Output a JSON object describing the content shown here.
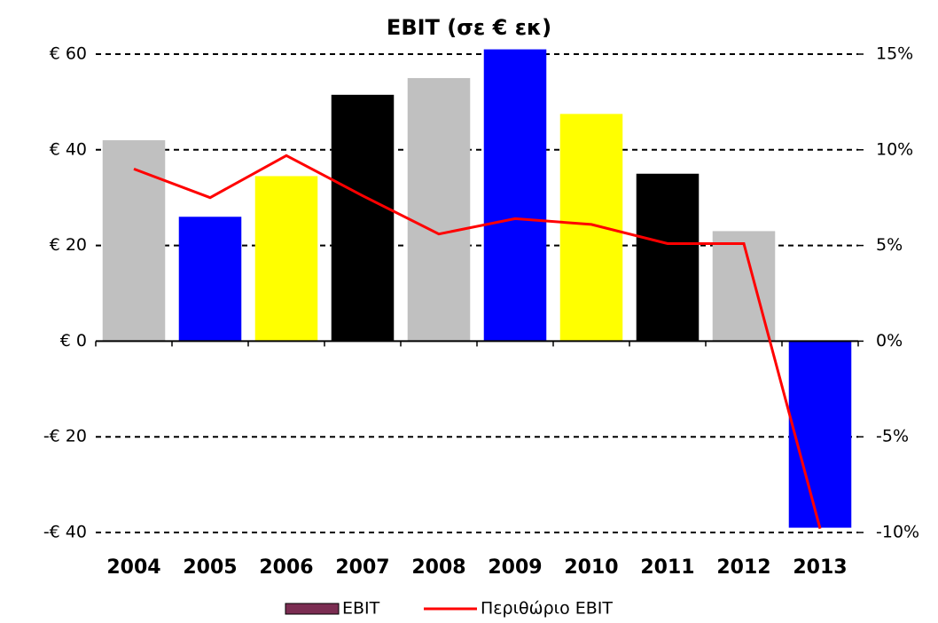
{
  "chart_data": {
    "type": "bar",
    "title": "EBIT (σε € εκ)",
    "categories": [
      "2004",
      "2005",
      "2006",
      "2007",
      "2008",
      "2009",
      "2010",
      "2011",
      "2012",
      "2013"
    ],
    "series": [
      {
        "name": "EBIT",
        "type": "bar",
        "color": "#7b2d52",
        "colors": [
          "#c0c0c0",
          "#0000ff",
          "#ffff00",
          "#000000",
          "#c0c0c0",
          "#0000ff",
          "#ffff00",
          "#000000",
          "#c0c0c0",
          "#0000ff"
        ],
        "values": [
          42,
          26,
          34.5,
          51.5,
          55,
          61,
          47.5,
          35,
          23,
          -39
        ]
      },
      {
        "name": "Περιθώριο EBIT",
        "type": "line",
        "color": "#ff0000",
        "axis": "y2",
        "values": [
          9,
          7.5,
          9.7,
          7.6,
          5.6,
          6.4,
          6.1,
          5.1,
          5.1,
          -9.8
        ]
      }
    ],
    "ylim": [
      -40,
      60
    ],
    "yticks": [
      {
        "value": -40,
        "label": "-€ 40"
      },
      {
        "value": -20,
        "label": "-€ 20"
      },
      {
        "value": 0,
        "label": "€ 0"
      },
      {
        "value": 20,
        "label": "€ 20"
      },
      {
        "value": 40,
        "label": "€ 40"
      },
      {
        "value": 60,
        "label": "€ 60"
      }
    ],
    "y2lim": [
      -10,
      15
    ],
    "y2ticks": [
      {
        "value": -10,
        "label": "-10%"
      },
      {
        "value": -5,
        "label": "-5%"
      },
      {
        "value": 0,
        "label": "0%"
      },
      {
        "value": 5,
        "label": "5%"
      },
      {
        "value": 10,
        "label": "10%"
      },
      {
        "value": 15,
        "label": "15%"
      }
    ],
    "grid": true
  }
}
